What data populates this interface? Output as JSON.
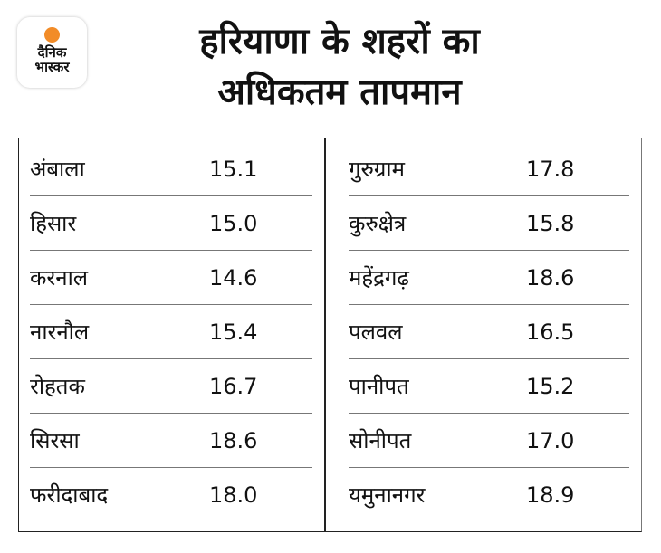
{
  "logo": {
    "line1": "दैनिक",
    "line2": "भास्कर"
  },
  "title": {
    "line1": "हरियाणा के शहरों का",
    "line2": "अधिकतम तापमान"
  },
  "table": {
    "left": [
      {
        "city": "अंबाला",
        "temp": "15.1"
      },
      {
        "city": "हिसार",
        "temp": "15.0"
      },
      {
        "city": "करनाल",
        "temp": "14.6"
      },
      {
        "city": "नारनौल",
        "temp": "15.4"
      },
      {
        "city": "रोहतक",
        "temp": "16.7"
      },
      {
        "city": "सिरसा",
        "temp": "18.6"
      },
      {
        "city": "फरीदाबाद",
        "temp": "18.0"
      }
    ],
    "right": [
      {
        "city": "गुरुग्राम",
        "temp": "17.8"
      },
      {
        "city": "कुरुक्षेत्र",
        "temp": "15.8"
      },
      {
        "city": "महेंद्रगढ़",
        "temp": "18.6"
      },
      {
        "city": "पलवल",
        "temp": "16.5"
      },
      {
        "city": "पानीपत",
        "temp": "15.2"
      },
      {
        "city": "सोनीपत",
        "temp": "17.0"
      },
      {
        "city": "यमुनानगर",
        "temp": "18.9"
      }
    ]
  }
}
